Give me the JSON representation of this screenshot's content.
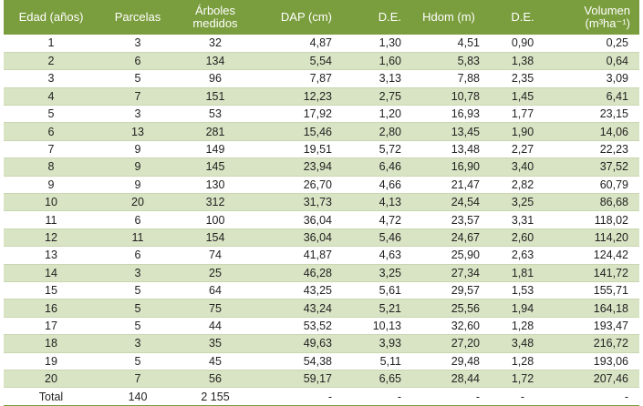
{
  "headers": {
    "edad": "Edad (años)",
    "parcelas": "Parcelas",
    "arboles_line1": "Árboles",
    "arboles_line2": "medidos",
    "dap": "DAP (cm)",
    "de1": "D.E.",
    "hdom": "Hdom (m)",
    "de2": "D.E.",
    "volumen_line1": "Volumen",
    "volumen_line2": "(m³ha⁻¹)"
  },
  "rows": [
    [
      "1",
      "3",
      "32",
      "4,87",
      "1,30",
      "4,51",
      "0,90",
      "0,25"
    ],
    [
      "2",
      "6",
      "134",
      "5,54",
      "1,60",
      "5,83",
      "1,38",
      "0,64"
    ],
    [
      "3",
      "5",
      "96",
      "7,87",
      "3,13",
      "7,88",
      "2,35",
      "3,09"
    ],
    [
      "4",
      "7",
      "151",
      "12,23",
      "2,75",
      "10,78",
      "1,45",
      "6,41"
    ],
    [
      "5",
      "3",
      "53",
      "17,92",
      "1,20",
      "16,93",
      "1,77",
      "23,15"
    ],
    [
      "6",
      "13",
      "281",
      "15,46",
      "2,80",
      "13,45",
      "1,90",
      "14,06"
    ],
    [
      "7",
      "9",
      "149",
      "19,51",
      "5,72",
      "13,48",
      "2,27",
      "22,23"
    ],
    [
      "8",
      "9",
      "145",
      "23,94",
      "6,46",
      "16,90",
      "3,40",
      "37,52"
    ],
    [
      "9",
      "9",
      "130",
      "26,70",
      "4,66",
      "21,47",
      "2,82",
      "60,79"
    ],
    [
      "10",
      "20",
      "312",
      "31,73",
      "4,13",
      "24,54",
      "3,25",
      "86,68"
    ],
    [
      "11",
      "6",
      "100",
      "36,04",
      "4,72",
      "23,57",
      "3,31",
      "118,02"
    ],
    [
      "12",
      "11",
      "154",
      "36,04",
      "5,46",
      "24,67",
      "2,60",
      "114,20"
    ],
    [
      "13",
      "6",
      "74",
      "41,87",
      "4,63",
      "25,90",
      "2,63",
      "124,42"
    ],
    [
      "14",
      "3",
      "25",
      "46,28",
      "3,25",
      "27,34",
      "1,81",
      "141,72"
    ],
    [
      "15",
      "5",
      "64",
      "43,25",
      "5,61",
      "29,57",
      "1,53",
      "155,71"
    ],
    [
      "16",
      "5",
      "75",
      "43,24",
      "5,21",
      "25,56",
      "1,94",
      "164,18"
    ],
    [
      "17",
      "5",
      "44",
      "53,52",
      "10,13",
      "32,60",
      "1,28",
      "193,47"
    ],
    [
      "18",
      "3",
      "35",
      "49,63",
      "3,93",
      "27,20",
      "3,48",
      "216,72"
    ],
    [
      "19",
      "5",
      "45",
      "54,38",
      "5,11",
      "29,48",
      "1,28",
      "193,06"
    ],
    [
      "20",
      "7",
      "56",
      "59,17",
      "6,65",
      "28,44",
      "1,72",
      "207,46"
    ]
  ],
  "total": [
    "Total",
    "140",
    "2 155",
    "-",
    "-",
    "-",
    "-",
    "-"
  ]
}
